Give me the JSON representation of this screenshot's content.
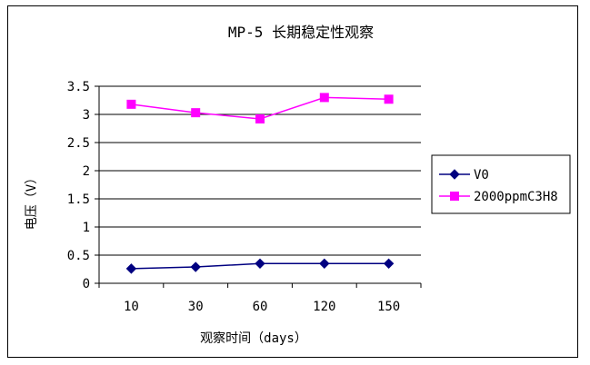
{
  "chart_data": {
    "type": "line",
    "title": "MP-5 长期稳定性观察",
    "xlabel": "观察时间（days）",
    "ylabel": "电压（V）",
    "categories": [
      "10",
      "30",
      "60",
      "120",
      "150"
    ],
    "ylim": [
      0,
      3.5
    ],
    "yticks": [
      "0",
      "0.5",
      "1",
      "1.5",
      "2",
      "2.5",
      "3",
      "3.5"
    ],
    "grid": true,
    "legend_position": "right",
    "series": [
      {
        "name": "V0",
        "color": "#000080",
        "marker": "diamond",
        "values": [
          0.26,
          0.29,
          0.35,
          0.35,
          0.35
        ]
      },
      {
        "name": "2000ppmC3H8",
        "color": "#ff00ff",
        "marker": "square",
        "values": [
          3.18,
          3.03,
          2.92,
          3.3,
          3.27
        ]
      }
    ]
  }
}
